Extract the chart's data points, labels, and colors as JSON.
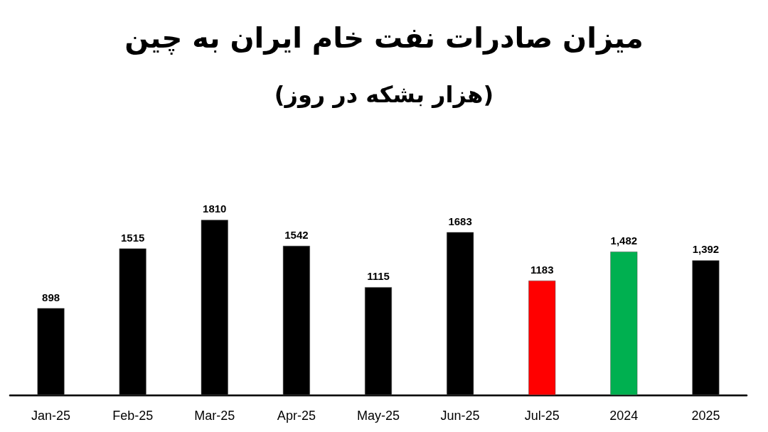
{
  "chart_data": {
    "type": "bar",
    "title": "میزان صادرات نفت خام ایران به چین",
    "subtitle": "(هزار بشکه در روز)",
    "categories": [
      "Jan-25",
      "Feb-25",
      "Mar-25",
      "Apr-25",
      "May-25",
      "Jun-25",
      "Jul-25",
      "2024",
      "2025"
    ],
    "values": [
      898,
      1515,
      1810,
      1542,
      1115,
      1683,
      1183,
      1482,
      1392
    ],
    "colors": [
      "#000000",
      "#000000",
      "#000000",
      "#000000",
      "#000000",
      "#000000",
      "#ff0000",
      "#00b050",
      "#000000"
    ],
    "value_labels": [
      "898",
      "1515",
      "1810",
      "1542",
      "1115",
      "1683",
      "1183",
      "1,482",
      "1,392"
    ]
  }
}
